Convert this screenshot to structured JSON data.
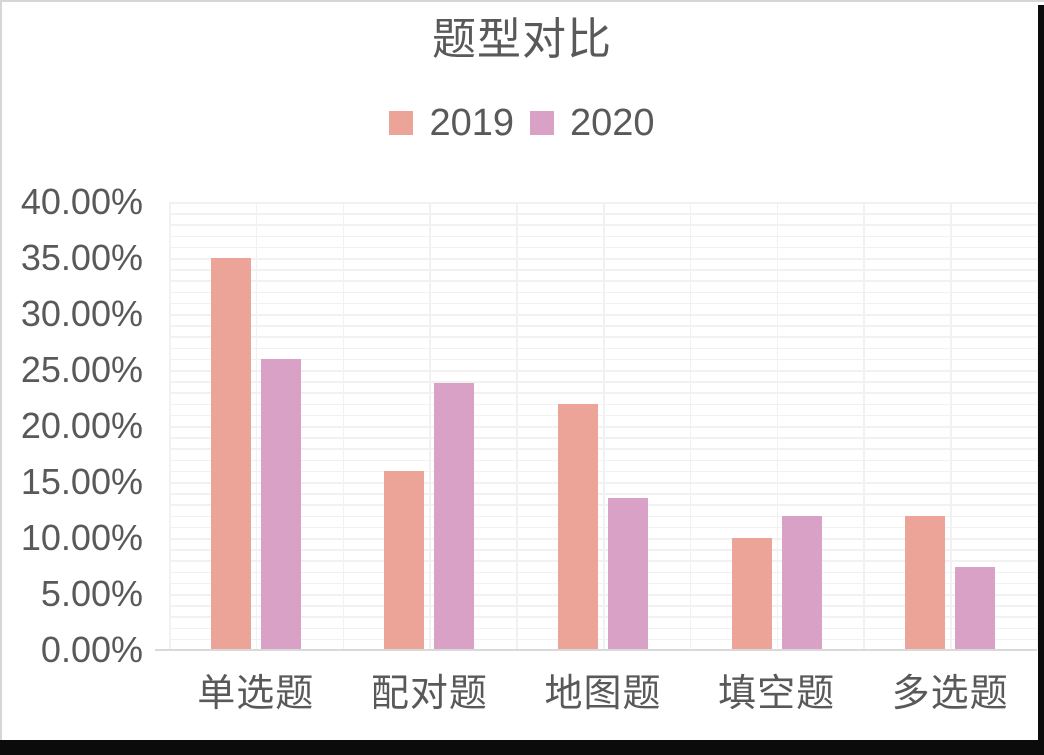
{
  "page": {
    "background": "#FFFFFF",
    "border_color": "#D6D6D6",
    "edge_bar_color": "#0B0B0B",
    "text_color": "#595959"
  },
  "chart_data": {
    "type": "bar",
    "title": "题型对比",
    "categories": [
      "单选题",
      "配对题",
      "地图题",
      "填空题",
      "多选题"
    ],
    "series": [
      {
        "name": "2019",
        "color": "#ECA498",
        "values": [
          35.0,
          16.0,
          22.0,
          10.0,
          12.0
        ]
      },
      {
        "name": "2020",
        "color": "#D9A1C6",
        "values": [
          26.0,
          23.8,
          13.6,
          12.0,
          7.4
        ]
      }
    ],
    "xlabel": "",
    "ylabel": "",
    "ylim": [
      0,
      40
    ],
    "ytick_values": [
      40,
      35,
      30,
      25,
      20,
      15,
      10,
      5,
      0
    ],
    "ytick_labels": [
      "40.00%",
      "35.00%",
      "30.00%",
      "25.00%",
      "20.00%",
      "15.00%",
      "10.00%",
      "5.00%",
      "0.00%"
    ],
    "grid": "on",
    "gridline_color": "#F1F1F1",
    "axis_line_color": "#D9D9D9",
    "legend_position": "top"
  }
}
